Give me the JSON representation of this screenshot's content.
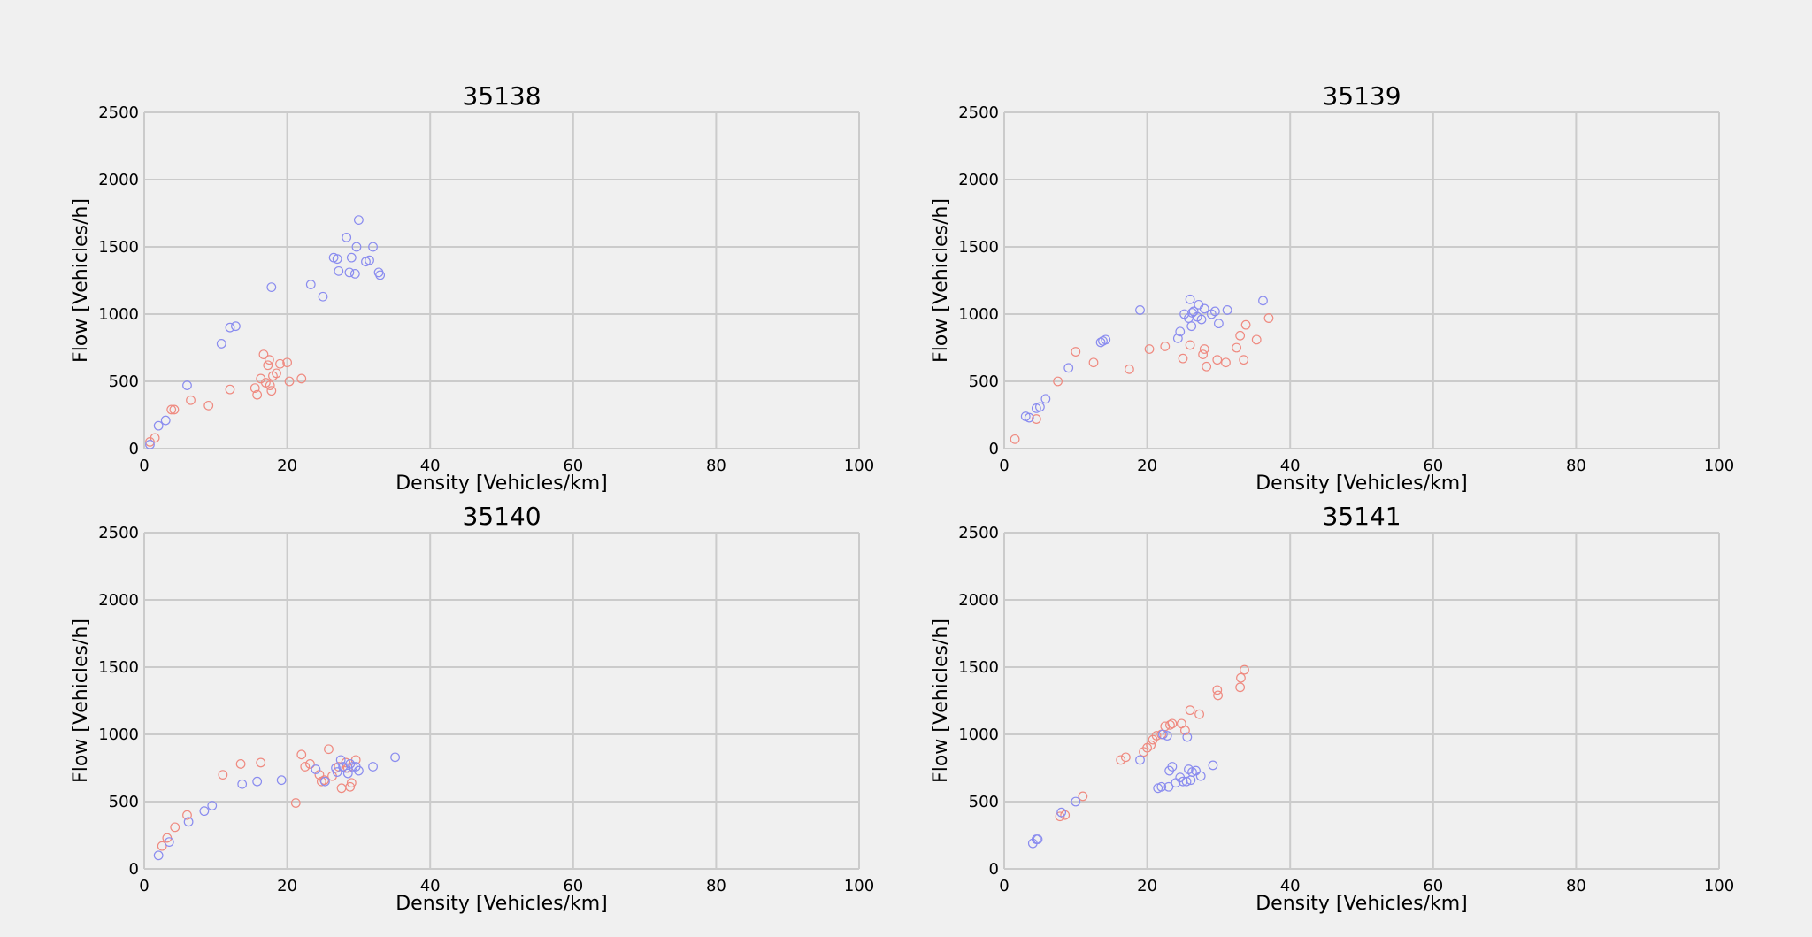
{
  "figure": {
    "colors": {
      "background": "#f0f0f0",
      "grid": "#cbcbcb",
      "series_free": "#ef8a80",
      "series_congested": "#8a8cef"
    }
  },
  "chart_data": [
    {
      "type": "scatter",
      "title": "35138",
      "xlabel": "Density [Vehicles/km]",
      "ylabel": "Flow [Vehicles/h]",
      "xlim": [
        0,
        100
      ],
      "ylim": [
        0,
        2500
      ],
      "xticks": [
        0,
        20,
        40,
        60,
        80,
        100
      ],
      "yticks": [
        0,
        500,
        1000,
        1500,
        2000,
        2500
      ],
      "grid": true,
      "series": [
        {
          "name": "red",
          "color": "#ef8a80",
          "points": [
            [
              0.8,
              50
            ],
            [
              1.5,
              80
            ],
            [
              3.8,
              290
            ],
            [
              4.2,
              290
            ],
            [
              6.5,
              360
            ],
            [
              9,
              320
            ],
            [
              12,
              440
            ],
            [
              15.5,
              450
            ],
            [
              15.8,
              400
            ],
            [
              16.3,
              520
            ],
            [
              16.7,
              700
            ],
            [
              17,
              490
            ],
            [
              17.3,
              620
            ],
            [
              17.5,
              660
            ],
            [
              17.6,
              470
            ],
            [
              17.8,
              430
            ],
            [
              18,
              540
            ],
            [
              18.5,
              560
            ],
            [
              19,
              630
            ],
            [
              20,
              640
            ],
            [
              20.3,
              500
            ],
            [
              22,
              520
            ]
          ]
        },
        {
          "name": "blue",
          "color": "#8a8cef",
          "points": [
            [
              0.8,
              30
            ],
            [
              2,
              170
            ],
            [
              3,
              210
            ],
            [
              6,
              470
            ],
            [
              10.8,
              780
            ],
            [
              12,
              900
            ],
            [
              12.8,
              910
            ],
            [
              17.8,
              1200
            ],
            [
              23.3,
              1220
            ],
            [
              25,
              1130
            ],
            [
              26.5,
              1420
            ],
            [
              27,
              1410
            ],
            [
              27.2,
              1320
            ],
            [
              28.3,
              1570
            ],
            [
              28.7,
              1310
            ],
            [
              29,
              1420
            ],
            [
              29.5,
              1300
            ],
            [
              29.7,
              1500
            ],
            [
              30,
              1700
            ],
            [
              31,
              1390
            ],
            [
              31.5,
              1400
            ],
            [
              32,
              1500
            ],
            [
              32.8,
              1310
            ],
            [
              33,
              1290
            ]
          ]
        }
      ]
    },
    {
      "type": "scatter",
      "title": "35139",
      "xlabel": "Density [Vehicles/km]",
      "ylabel": "Flow [Vehicles/h]",
      "xlim": [
        0,
        100
      ],
      "ylim": [
        0,
        2500
      ],
      "xticks": [
        0,
        20,
        40,
        60,
        80,
        100
      ],
      "yticks": [
        0,
        500,
        1000,
        1500,
        2000,
        2500
      ],
      "grid": true,
      "series": [
        {
          "name": "red",
          "color": "#ef8a80",
          "points": [
            [
              1.5,
              70
            ],
            [
              4.5,
              220
            ],
            [
              7.5,
              500
            ],
            [
              10,
              720
            ],
            [
              12.5,
              640
            ],
            [
              17.5,
              590
            ],
            [
              20.3,
              740
            ],
            [
              22.5,
              760
            ],
            [
              25,
              670
            ],
            [
              26,
              770
            ],
            [
              27.8,
              700
            ],
            [
              28,
              740
            ],
            [
              28.3,
              610
            ],
            [
              29.8,
              660
            ],
            [
              31,
              640
            ],
            [
              32.5,
              750
            ],
            [
              33,
              840
            ],
            [
              33.5,
              660
            ],
            [
              33.8,
              920
            ],
            [
              35.3,
              810
            ],
            [
              37,
              970
            ]
          ]
        },
        {
          "name": "blue",
          "color": "#8a8cef",
          "points": [
            [
              3,
              240
            ],
            [
              3.5,
              230
            ],
            [
              4.5,
              300
            ],
            [
              5,
              310
            ],
            [
              5.8,
              370
            ],
            [
              9,
              600
            ],
            [
              13.5,
              790
            ],
            [
              13.8,
              800
            ],
            [
              14.2,
              810
            ],
            [
              19,
              1030
            ],
            [
              24.3,
              820
            ],
            [
              24.6,
              870
            ],
            [
              25.2,
              1000
            ],
            [
              25.8,
              970
            ],
            [
              26,
              1110
            ],
            [
              26.2,
              910
            ],
            [
              26.3,
              1010
            ],
            [
              26.5,
              1020
            ],
            [
              27,
              980
            ],
            [
              27.2,
              1070
            ],
            [
              27.6,
              960
            ],
            [
              28,
              1040
            ],
            [
              29,
              1000
            ],
            [
              29.5,
              1020
            ],
            [
              30,
              930
            ],
            [
              31.2,
              1030
            ],
            [
              36.2,
              1100
            ]
          ]
        }
      ]
    },
    {
      "type": "scatter",
      "title": "35140",
      "xlabel": "Density [Vehicles/km]",
      "ylabel": "Flow [Vehicles/h]",
      "xlim": [
        0,
        100
      ],
      "ylim": [
        0,
        2500
      ],
      "xticks": [
        0,
        20,
        40,
        60,
        80,
        100
      ],
      "yticks": [
        0,
        500,
        1000,
        1500,
        2000,
        2500
      ],
      "grid": true,
      "series": [
        {
          "name": "red",
          "color": "#ef8a80",
          "points": [
            [
              2.5,
              170
            ],
            [
              3.2,
              230
            ],
            [
              4.3,
              310
            ],
            [
              6,
              400
            ],
            [
              11,
              700
            ],
            [
              13.5,
              780
            ],
            [
              16.3,
              790
            ],
            [
              21.2,
              490
            ],
            [
              22,
              850
            ],
            [
              22.5,
              760
            ],
            [
              23.2,
              780
            ],
            [
              24.5,
              700
            ],
            [
              24.8,
              650
            ],
            [
              25.2,
              660
            ],
            [
              25.8,
              890
            ],
            [
              26.3,
              690
            ],
            [
              27.2,
              760
            ],
            [
              27.6,
              600
            ],
            [
              28.2,
              790
            ],
            [
              28.5,
              750
            ],
            [
              28.8,
              610
            ],
            [
              29,
              640
            ],
            [
              29.6,
              810
            ]
          ]
        },
        {
          "name": "blue",
          "color": "#8a8cef",
          "points": [
            [
              2,
              100
            ],
            [
              3.5,
              200
            ],
            [
              6.2,
              350
            ],
            [
              8.4,
              430
            ],
            [
              9.5,
              470
            ],
            [
              13.7,
              630
            ],
            [
              15.8,
              650
            ],
            [
              19.2,
              660
            ],
            [
              24,
              740
            ],
            [
              25.3,
              650
            ],
            [
              26.8,
              750
            ],
            [
              27,
              720
            ],
            [
              27.5,
              810
            ],
            [
              27.8,
              760
            ],
            [
              28.2,
              750
            ],
            [
              28.5,
              710
            ],
            [
              28.8,
              780
            ],
            [
              29.2,
              760
            ],
            [
              29.6,
              760
            ],
            [
              30,
              730
            ],
            [
              32,
              760
            ],
            [
              35.1,
              830
            ]
          ]
        }
      ]
    },
    {
      "type": "scatter",
      "title": "35141",
      "xlabel": "Density [Vehicles/km]",
      "ylabel": "Flow [Vehicles/h]",
      "xlim": [
        0,
        100
      ],
      "ylim": [
        0,
        2500
      ],
      "xticks": [
        0,
        20,
        40,
        60,
        80,
        100
      ],
      "yticks": [
        0,
        500,
        1000,
        1500,
        2000,
        2500
      ],
      "grid": true,
      "series": [
        {
          "name": "red",
          "color": "#ef8a80",
          "points": [
            [
              7.8,
              390
            ],
            [
              8.5,
              400
            ],
            [
              11,
              540
            ],
            [
              16.3,
              810
            ],
            [
              17,
              830
            ],
            [
              19.5,
              870
            ],
            [
              20,
              900
            ],
            [
              20.5,
              920
            ],
            [
              20.8,
              960
            ],
            [
              21.3,
              990
            ],
            [
              22,
              1000
            ],
            [
              22.5,
              1060
            ],
            [
              23.2,
              1070
            ],
            [
              23.5,
              1080
            ],
            [
              24.8,
              1080
            ],
            [
              25.3,
              1030
            ],
            [
              26,
              1180
            ],
            [
              27.3,
              1150
            ],
            [
              29.8,
              1330
            ],
            [
              29.9,
              1290
            ],
            [
              33,
              1350
            ],
            [
              33.1,
              1420
            ],
            [
              33.6,
              1480
            ]
          ]
        },
        {
          "name": "blue",
          "color": "#8a8cef",
          "points": [
            [
              4,
              190
            ],
            [
              4.5,
              220
            ],
            [
              4.7,
              220
            ],
            [
              8,
              420
            ],
            [
              10,
              500
            ],
            [
              19,
              810
            ],
            [
              21.5,
              600
            ],
            [
              22,
              610
            ],
            [
              22.2,
              1000
            ],
            [
              22.8,
              990
            ],
            [
              23,
              610
            ],
            [
              23.1,
              730
            ],
            [
              23.5,
              760
            ],
            [
              24,
              640
            ],
            [
              24.6,
              680
            ],
            [
              25,
              650
            ],
            [
              25.5,
              650
            ],
            [
              25.6,
              980
            ],
            [
              25.8,
              740
            ],
            [
              26.1,
              660
            ],
            [
              26.3,
              720
            ],
            [
              26.8,
              730
            ],
            [
              27.5,
              690
            ],
            [
              29.2,
              770
            ]
          ]
        }
      ]
    }
  ]
}
